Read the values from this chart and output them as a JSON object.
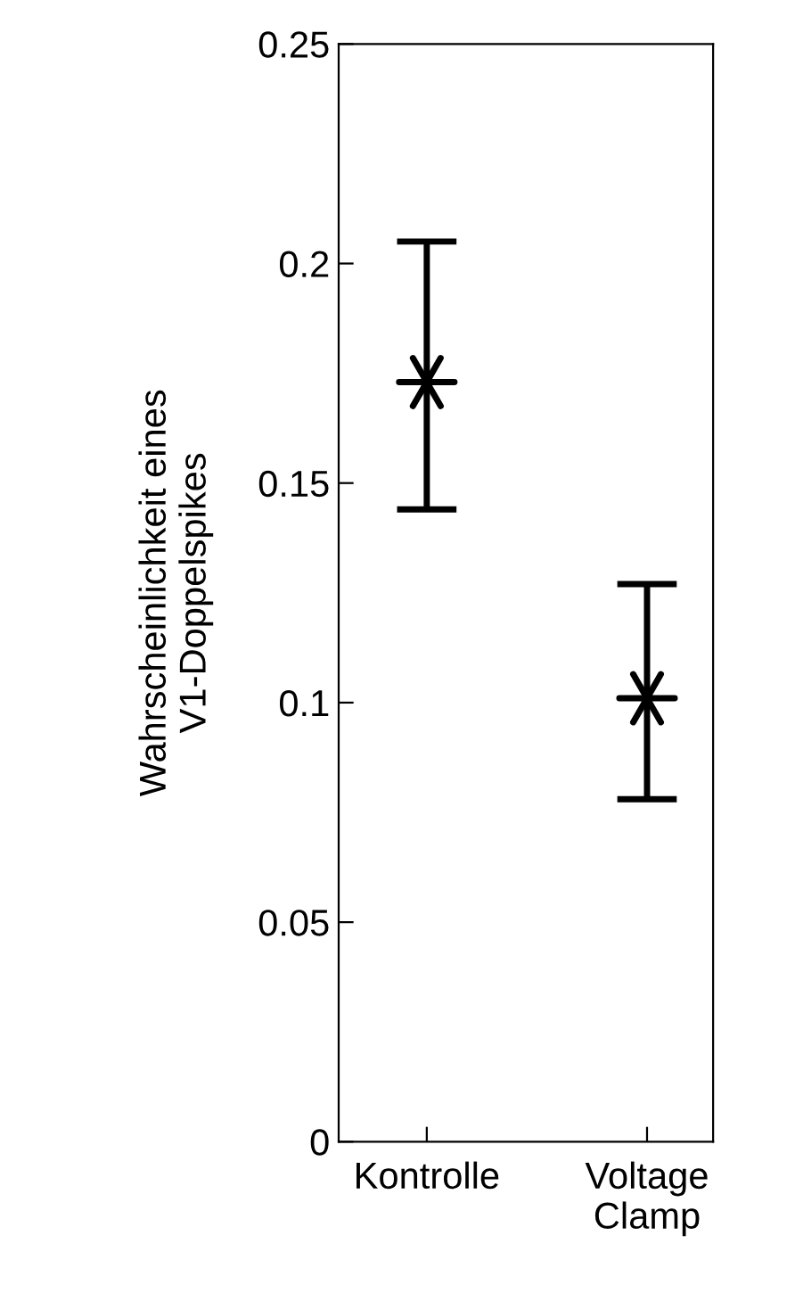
{
  "chart_data": {
    "type": "scatter",
    "ylabel": "Wahrscheinlichkeit eines\nV1-Doppelspikes",
    "categories": [
      "Kontrolle",
      "Voltage\nClamp"
    ],
    "series": [
      {
        "color": "#000000",
        "values": [
          0.173,
          0.101
        ],
        "errors": [
          [
            0.144,
            0.205
          ],
          [
            0.078,
            0.127
          ]
        ]
      }
    ],
    "ylim": [
      0,
      0.25
    ],
    "yticks": [
      0,
      0.05,
      0.1,
      0.15,
      0.2,
      0.25
    ],
    "marker": "cross",
    "grid": false,
    "legend": false
  }
}
